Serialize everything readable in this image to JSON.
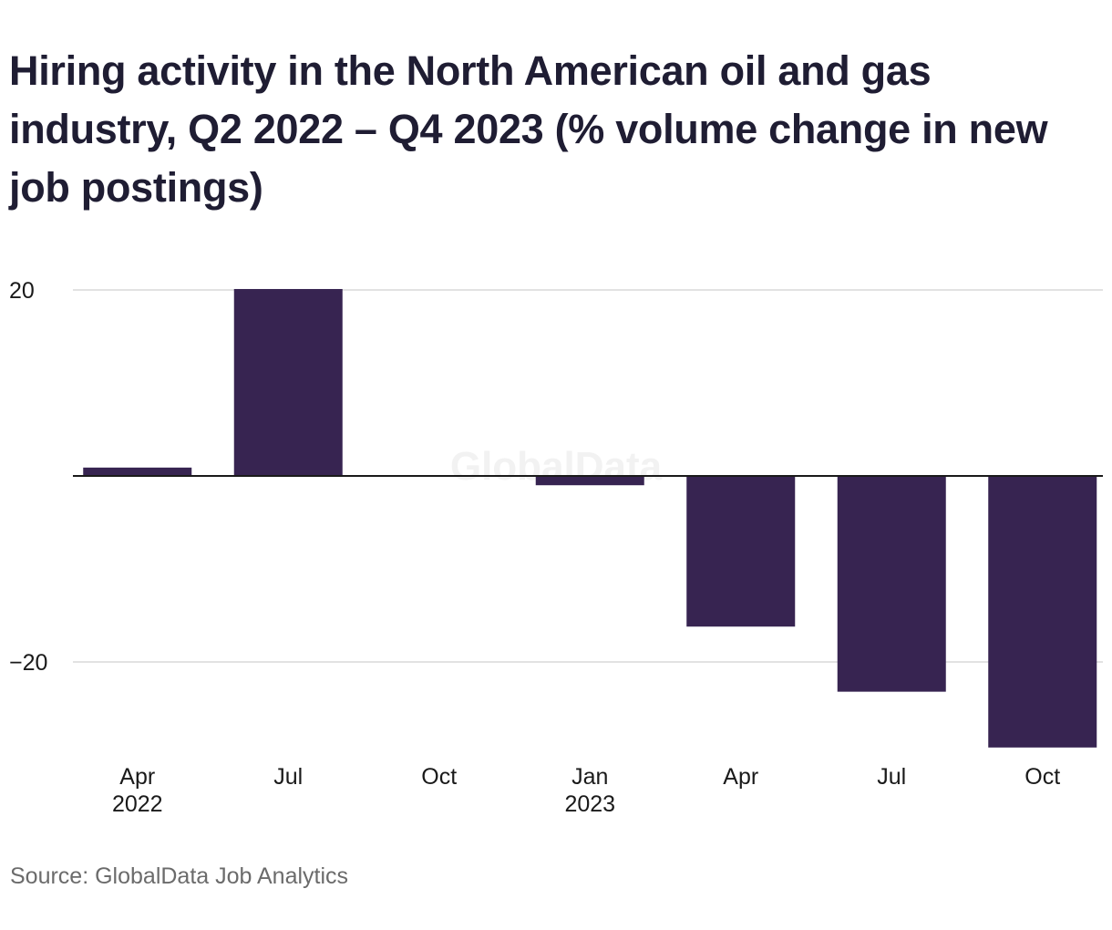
{
  "header": {
    "title": "Hiring activity in the North American oil and gas industry, Q2 2022 – Q4 2023 (% volume change in new job postings)"
  },
  "footer": {
    "source": "Source: GlobalData Job Analytics"
  },
  "watermark": {
    "text": "GlobalData"
  },
  "colors": {
    "bar": "#372451",
    "grid": "#d9d9d9",
    "zero_line": "#1a1a1a",
    "title": "#1f1d33",
    "tick_text": "#1a1a1a",
    "source_text": "#6b6b6b",
    "watermark": "#f2f2f2"
  },
  "chart_data": {
    "type": "bar",
    "title": "Hiring activity in the North American oil and gas industry, Q2 2022 – Q4 2023 (% volume change in new job postings)",
    "categories": [
      "Apr 2022",
      "Jul 2022",
      "Oct 2022",
      "Jan 2023",
      "Apr 2023",
      "Jul 2023",
      "Oct 2023"
    ],
    "x_tick_labels": [
      [
        "Apr",
        "2022"
      ],
      [
        "Jul"
      ],
      [
        "Oct"
      ],
      [
        "Jan",
        "2023"
      ],
      [
        "Apr"
      ],
      [
        "Jul"
      ],
      [
        "Oct"
      ]
    ],
    "values": [
      0.9,
      20.1,
      0.0,
      -1.0,
      -16.2,
      -23.2,
      -29.2
    ],
    "y_ticks": [
      20,
      0,
      -20
    ],
    "y_tick_labels": [
      "20",
      "",
      "−20"
    ],
    "ylim": [
      -29.2,
      20.1
    ],
    "xlabel": "",
    "ylabel": "",
    "grid": true,
    "legend": "none"
  }
}
